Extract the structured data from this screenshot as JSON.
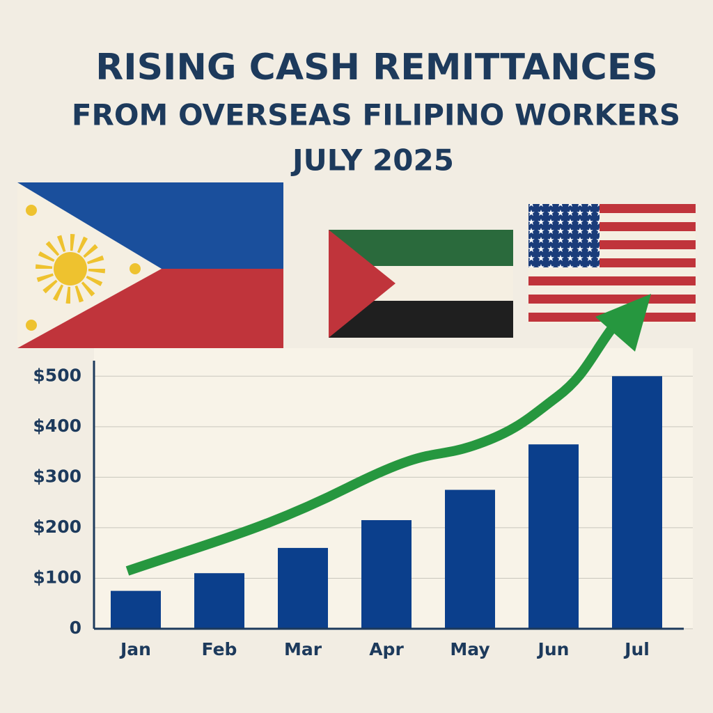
{
  "chart_data": {
    "type": "bar",
    "title": "RISING CASH REMITTANCES",
    "subtitle": "FROM OVERSEAS FILIPINO WORKERS",
    "date": "JULY 2025",
    "categories": [
      "Jan",
      "Feb",
      "Mar",
      "Apr",
      "May",
      "Jun",
      "Jul"
    ],
    "values": [
      75,
      110,
      160,
      215,
      275,
      365,
      500
    ],
    "color": "#0b3f8c",
    "ylim": [
      0,
      550
    ],
    "yticks": [
      0,
      {
        "value": 100,
        "label": "$100"
      },
      {
        "value": 200,
        "label": "$200"
      },
      {
        "value": 300,
        "label": "$300"
      },
      {
        "value": 400,
        "label": "$400"
      },
      {
        "value": 500,
        "label": "$500"
      }
    ],
    "grid": true
  }
}
